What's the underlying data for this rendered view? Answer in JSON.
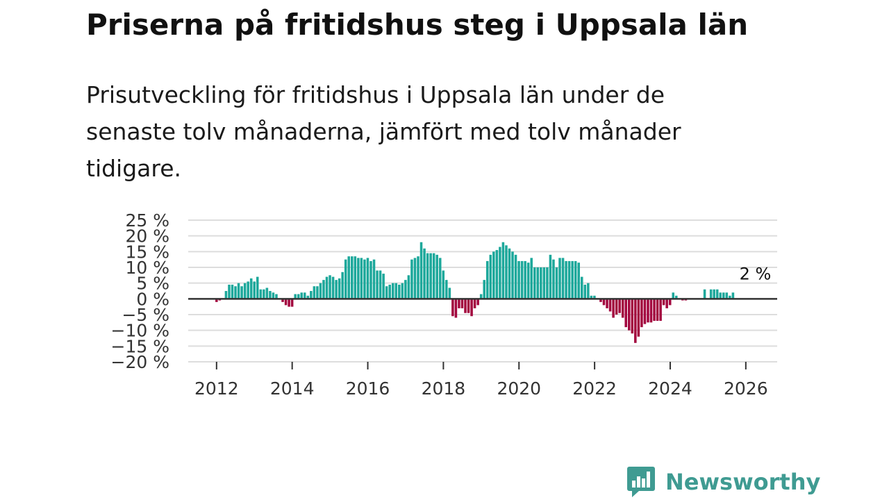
{
  "title": "Priserna på fritidshus steg i Uppsala län",
  "subtitle": "Prisutveckling för fritidshus i Uppsala län under de senaste tolv månaderna, jämfört med tolv månader tidigare.",
  "brand": {
    "name": "Newsworthy",
    "logo_icon": "newsworthy-chart-logo-icon"
  },
  "colors": {
    "positive": "#1da89b",
    "negative": "#a3083f",
    "zero_line": "#333333",
    "grid": "#dddddd",
    "brand": "#3f9b92"
  },
  "chart_data": {
    "type": "bar",
    "title": "Priserna på fritidshus steg i Uppsala län",
    "xlabel": "",
    "ylabel": "",
    "ylim": [
      -20,
      25
    ],
    "xlim": [
      2011.25,
      2026.83
    ],
    "grid": true,
    "y_ticks": [
      25,
      20,
      15,
      10,
      5,
      0,
      -5,
      -10,
      -15,
      -20
    ],
    "y_tick_labels": [
      "25 %",
      "20 %",
      "15 %",
      "10 %",
      "5 %",
      "0 %",
      "−5 %",
      "−10 %",
      "−15 %",
      "−20 %"
    ],
    "x_ticks": [
      2012,
      2014,
      2016,
      2018,
      2020,
      2022,
      2024,
      2026
    ],
    "x_tick_labels": [
      "2012",
      "2014",
      "2016",
      "2018",
      "2020",
      "2022",
      "2024",
      "2026"
    ],
    "start": 2012.0,
    "step": 0.0833,
    "values": [
      -1,
      -0.5,
      0,
      2.5,
      4.5,
      4.5,
      4,
      5,
      4,
      5,
      5.5,
      6.5,
      5.5,
      7,
      3,
      3,
      3.5,
      2.5,
      2,
      1.5,
      0,
      -1,
      -2,
      -2.5,
      -2.5,
      1.5,
      1.5,
      2,
      2,
      1,
      2.5,
      4,
      4,
      5,
      6,
      7,
      7.5,
      7,
      6,
      6.5,
      8.5,
      12.5,
      13.5,
      13.5,
      13.5,
      13,
      13,
      12.5,
      13,
      12,
      12.5,
      9,
      9,
      8,
      4,
      4.5,
      5,
      5,
      4.5,
      5,
      6,
      7.5,
      12.5,
      13,
      13.5,
      18,
      16,
      14.5,
      14.5,
      14.5,
      14,
      13,
      9,
      6,
      3.5,
      -5.5,
      -6,
      -3,
      -3,
      -4.5,
      -4.5,
      -5.5,
      -3,
      -2,
      1.5,
      6,
      12,
      14,
      15,
      15.5,
      16.5,
      18,
      17,
      16,
      15,
      14,
      12,
      12,
      12,
      11.5,
      13,
      10,
      10,
      10,
      10,
      10,
      14,
      12.5,
      10,
      13,
      13,
      12,
      12,
      12,
      12,
      11.5,
      7,
      4.5,
      5,
      1,
      1,
      0,
      -1,
      -2,
      -3,
      -4,
      -6,
      -5,
      -4.5,
      -6,
      -9,
      -10,
      -11,
      -14,
      -12,
      -9,
      -8,
      -7.5,
      -7.5,
      -7,
      -7,
      -7,
      -2,
      -3,
      -2,
      2,
      1,
      0,
      -0.5,
      -0.5,
      0,
      0,
      0,
      0,
      0,
      3,
      0,
      3,
      3,
      3,
      2,
      2,
      2,
      1,
      2
    ],
    "annotations": [
      {
        "label": "2 %",
        "x": 2026.25,
        "y": 2
      }
    ]
  }
}
